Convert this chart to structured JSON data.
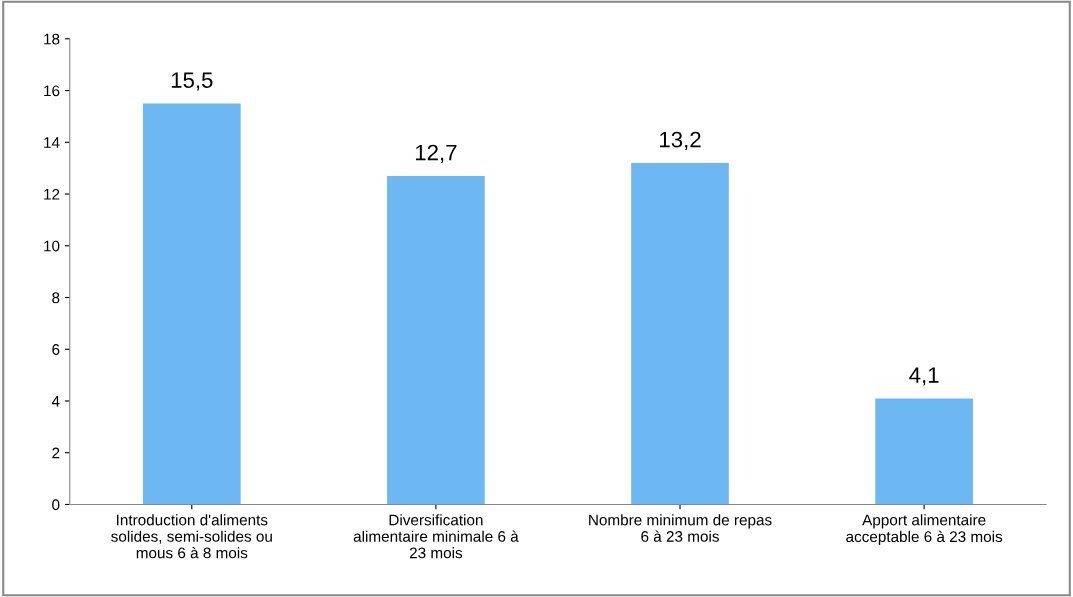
{
  "chart_data": {
    "type": "bar",
    "categories": [
      "Introduction d'aliments solides, semi-solides ou mous 6 à 8 mois",
      "Diversification alimentaire minimale 6 à 23 mois",
      "Nombre minimum de repas 6 à 23 mois",
      "Apport alimentaire acceptable 6 à 23 mois"
    ],
    "values": [
      15.5,
      12.7,
      13.2,
      4.1
    ],
    "value_labels": [
      "15,5",
      "12,7",
      "13,2",
      "4,1"
    ],
    "color": "#6db8f2",
    "ylim": [
      0,
      18
    ],
    "yticks": [
      0,
      2,
      4,
      6,
      8,
      10,
      12,
      14,
      16,
      18
    ],
    "grid": false
  }
}
